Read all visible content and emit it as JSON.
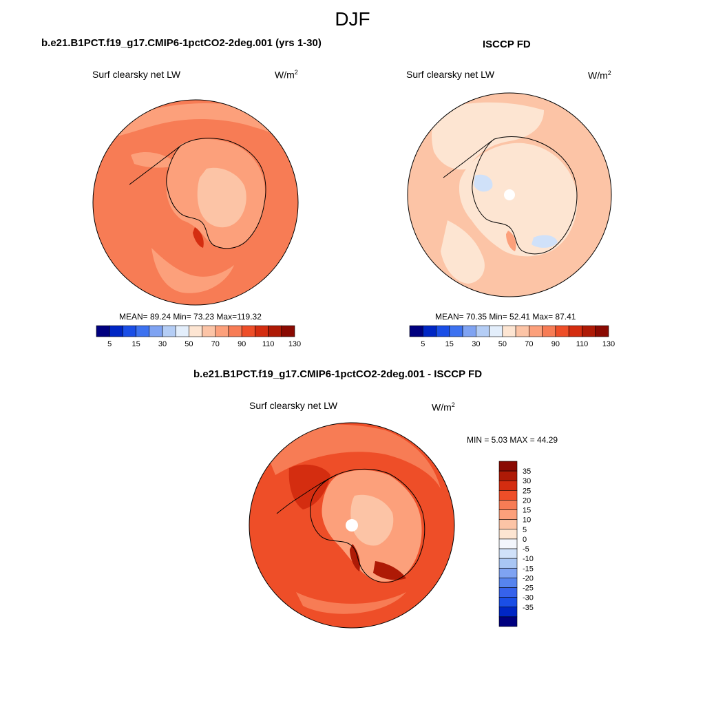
{
  "season": "DJF",
  "panels": {
    "model": {
      "title": "b.e21.B1PCT.f19_g17.CMIP6-1pctCO2-2deg.001 (yrs 1-30)",
      "variable": "Surf clearsky net LW",
      "units_base": "W/m",
      "units_exp": "2",
      "stats": "MEAN=  89.24  Min=  73.23  Max=119.32"
    },
    "obs": {
      "title": "ISCCP FD",
      "variable": "Surf clearsky net LW",
      "units_base": "W/m",
      "units_exp": "2",
      "stats": "MEAN=  70.35  Min=  52.41  Max=  87.41"
    },
    "diff": {
      "title": "b.e21.B1PCT.f19_g17.CMIP6-1pctCO2-2deg.001 - ISCCP FD",
      "variable": "Surf clearsky net LW",
      "units_base": "W/m",
      "units_exp": "2",
      "stats": "MIN =   5.03 MAX =  44.29"
    }
  },
  "chart_data": [
    {
      "type": "map",
      "projection": "south-polar-stereographic",
      "panel": "model",
      "colorbar": {
        "orientation": "horizontal",
        "colors": [
          "#00007f",
          "#0026c4",
          "#1a4ee6",
          "#3d72f0",
          "#7fa3f2",
          "#b4cdf5",
          "#e3eefb",
          "#fde5d2",
          "#fcc4a6",
          "#fca07b",
          "#f77c55",
          "#ee4e28",
          "#d42d10",
          "#ae1a06",
          "#8a0a02"
        ],
        "tick_labels": [
          "5",
          "15",
          "30",
          "50",
          "70",
          "90",
          "110",
          "130"
        ]
      },
      "mean": 89.24,
      "min": 73.23,
      "max": 119.32
    },
    {
      "type": "map",
      "projection": "south-polar-stereographic",
      "panel": "obs",
      "colorbar": {
        "orientation": "horizontal",
        "colors": [
          "#00007f",
          "#0026c4",
          "#1a4ee6",
          "#3d72f0",
          "#7fa3f2",
          "#b4cdf5",
          "#e3eefb",
          "#fde5d2",
          "#fcc4a6",
          "#fca07b",
          "#f77c55",
          "#ee4e28",
          "#d42d10",
          "#ae1a06",
          "#8a0a02"
        ],
        "tick_labels": [
          "5",
          "15",
          "30",
          "50",
          "70",
          "90",
          "110",
          "130"
        ]
      },
      "mean": 70.35,
      "min": 52.41,
      "max": 87.41
    },
    {
      "type": "map",
      "projection": "south-polar-stereographic",
      "panel": "diff",
      "colorbar": {
        "orientation": "vertical",
        "colors": [
          "#8a0a02",
          "#ae1a06",
          "#d42d10",
          "#ee4e28",
          "#f77c55",
          "#fca07b",
          "#fcc4a6",
          "#fde5d2",
          "#f3f6fc",
          "#d0e1f9",
          "#a9c6f4",
          "#7fa3f2",
          "#5784ee",
          "#3662eb",
          "#1a4ee6",
          "#0026c4",
          "#00007f"
        ],
        "tick_labels": [
          "35",
          "30",
          "25",
          "20",
          "15",
          "10",
          "5",
          "0",
          "-5",
          "-10",
          "-15",
          "-20",
          "-25",
          "-30",
          "-35"
        ]
      },
      "min": 5.03,
      "max": 44.29
    }
  ]
}
